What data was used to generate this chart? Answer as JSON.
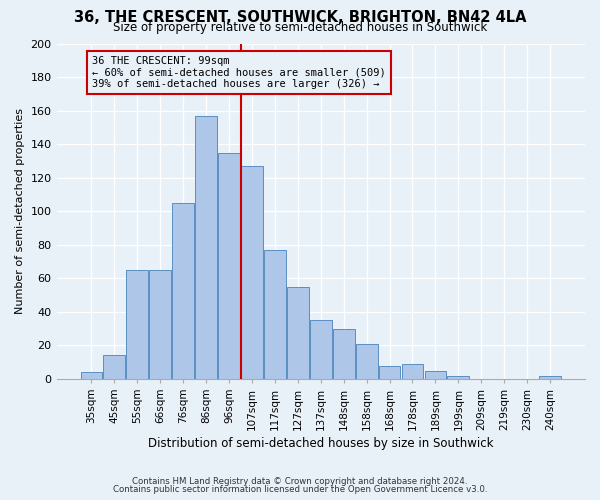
{
  "title": "36, THE CRESCENT, SOUTHWICK, BRIGHTON, BN42 4LA",
  "subtitle": "Size of property relative to semi-detached houses in Southwick",
  "xlabel": "Distribution of semi-detached houses by size in Southwick",
  "ylabel": "Number of semi-detached properties",
  "footnote1": "Contains HM Land Registry data © Crown copyright and database right 2024.",
  "footnote2": "Contains public sector information licensed under the Open Government Licence v3.0.",
  "bar_labels": [
    "35sqm",
    "45sqm",
    "55sqm",
    "66sqm",
    "76sqm",
    "86sqm",
    "96sqm",
    "107sqm",
    "117sqm",
    "127sqm",
    "137sqm",
    "148sqm",
    "158sqm",
    "168sqm",
    "178sqm",
    "189sqm",
    "199sqm",
    "209sqm",
    "219sqm",
    "230sqm",
    "240sqm"
  ],
  "bar_values": [
    4,
    14,
    65,
    65,
    105,
    157,
    135,
    127,
    77,
    55,
    35,
    30,
    21,
    8,
    9,
    5,
    2,
    0,
    0,
    0,
    2
  ],
  "bar_color": "#aec6e8",
  "bar_edge_color": "#5a8fc2",
  "property_label": "36 THE CRESCENT: 99sqm",
  "pct_smaller": 60,
  "count_smaller": 509,
  "pct_larger": 39,
  "count_larger": 326,
  "vline_x_index": 6.5,
  "annotation_box_color": "#cc0000",
  "bg_color": "#e8f0f8",
  "grid_color": "#ffffff",
  "ylim": [
    0,
    200
  ],
  "yticks": [
    0,
    20,
    40,
    60,
    80,
    100,
    120,
    140,
    160,
    180,
    200
  ]
}
